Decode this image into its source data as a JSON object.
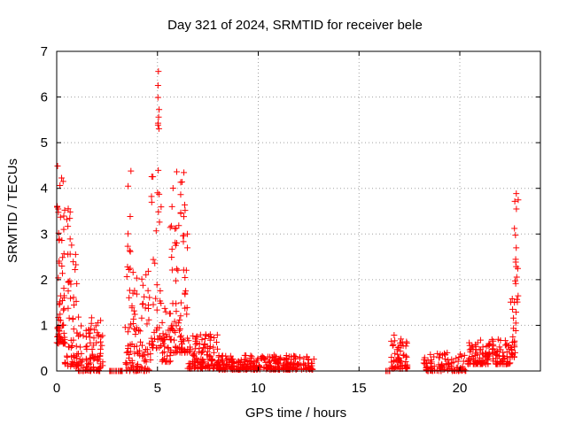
{
  "chart_data": {
    "type": "scatter",
    "title": "Day 321 of 2024, SRMTID for receiver bele",
    "xlabel": "GPS time / hours",
    "ylabel": "SRMTID / TECUs",
    "xlim": [
      0,
      24
    ],
    "ylim": [
      0,
      7
    ],
    "xticks": [
      0,
      5,
      10,
      15,
      20
    ],
    "yticks": [
      0,
      1,
      2,
      3,
      4,
      5,
      6,
      7
    ],
    "grid": true,
    "marker": "+",
    "color": "#ff0000",
    "clusters": [
      {
        "x": [
          0.0,
          0.4
        ],
        "ymin": 0.6,
        "ymax": 4.6,
        "n": 70
      },
      {
        "x": [
          0.4,
          1.0
        ],
        "ymin": 0.1,
        "ymax": 3.7,
        "n": 60
      },
      {
        "x": [
          1.0,
          2.3
        ],
        "ymin": 0.0,
        "ymax": 1.2,
        "n": 110
      },
      {
        "x": [
          2.6,
          3.3
        ],
        "ymin": 0.0,
        "ymax": 0.0,
        "n": 16
      },
      {
        "x": [
          3.4,
          4.7
        ],
        "ymin": 0.0,
        "ymax": 2.2,
        "n": 110
      },
      {
        "x": [
          3.5,
          3.7
        ],
        "ymin": 2.2,
        "ymax": 4.6,
        "n": 10
      },
      {
        "x": [
          4.7,
          5.2
        ],
        "ymin": 0.5,
        "ymax": 4.5,
        "n": 40
      },
      {
        "x": [
          5.0,
          5.1
        ],
        "ymin": 5.3,
        "ymax": 6.7,
        "n": 8
      },
      {
        "x": [
          5.2,
          5.7
        ],
        "ymin": 0.2,
        "ymax": 1.4,
        "n": 35
      },
      {
        "x": [
          5.6,
          6.5
        ],
        "ymin": 0.4,
        "ymax": 4.4,
        "n": 90
      },
      {
        "x": [
          6.5,
          8.0
        ],
        "ymin": 0.05,
        "ymax": 0.8,
        "n": 120
      },
      {
        "x": [
          8.0,
          12.8
        ],
        "ymin": 0.03,
        "ymax": 0.35,
        "n": 300
      },
      {
        "x": [
          16.3,
          16.6
        ],
        "ymin": 0.0,
        "ymax": 0.0,
        "n": 6
      },
      {
        "x": [
          16.6,
          17.4
        ],
        "ymin": 0.05,
        "ymax": 0.8,
        "n": 60
      },
      {
        "x": [
          18.2,
          20.5
        ],
        "ymin": 0.0,
        "ymax": 0.4,
        "n": 100
      },
      {
        "x": [
          20.4,
          22.5
        ],
        "ymin": 0.15,
        "ymax": 0.7,
        "n": 140
      },
      {
        "x": [
          22.5,
          22.8
        ],
        "ymin": 0.3,
        "ymax": 1.8,
        "n": 25
      },
      {
        "x": [
          22.7,
          22.9
        ],
        "ymin": 1.5,
        "ymax": 4.0,
        "n": 18
      }
    ]
  }
}
